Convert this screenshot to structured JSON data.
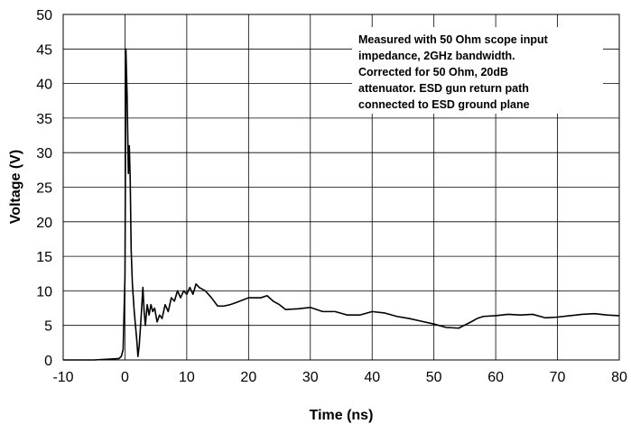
{
  "chart_data": {
    "type": "line",
    "title": "",
    "xlabel": "Time (ns)",
    "ylabel": "Voltage (V)",
    "xlim": [
      -10,
      80
    ],
    "ylim": [
      0,
      50
    ],
    "xticks": [
      -10,
      0,
      10,
      20,
      30,
      40,
      50,
      60,
      70,
      80
    ],
    "yticks": [
      0,
      5,
      10,
      15,
      20,
      25,
      30,
      35,
      40,
      45,
      50
    ],
    "grid": true,
    "annotation": [
      "Measured with 50 Ohm scope input",
      "impedance, 2GHz bandwidth.",
      "Corrected for 50 Ohm, 20dB",
      "attenuator. ESD gun return path",
      "connected to ESD ground plane"
    ],
    "series": [
      {
        "color": "#000000",
        "x": [
          -10,
          -5,
          -1,
          -0.6,
          -0.3,
          0,
          0.15,
          0.35,
          0.55,
          0.7,
          0.85,
          1.0,
          1.2,
          1.5,
          1.9,
          2.1,
          2.3,
          2.6,
          2.9,
          3.1,
          3.3,
          3.6,
          3.9,
          4.2,
          4.5,
          4.8,
          5.2,
          5.6,
          6.0,
          6.5,
          7.0,
          7.5,
          8.0,
          8.5,
          9.0,
          9.5,
          10,
          10.5,
          11,
          11.5,
          12,
          13,
          14,
          15,
          16,
          17,
          18,
          20,
          22,
          23,
          24,
          25,
          26,
          28,
          30,
          32,
          34,
          36,
          38,
          40,
          42,
          44,
          46,
          48,
          50,
          52,
          54,
          56,
          57,
          58,
          60,
          62,
          64,
          66,
          68,
          70,
          72,
          74,
          76,
          78,
          80
        ],
        "y": [
          0,
          0,
          0.2,
          0.5,
          1.5,
          12,
          45,
          38,
          27,
          31,
          26,
          16,
          11,
          7,
          3,
          0.5,
          2,
          6,
          10.5,
          7,
          5,
          8,
          6.5,
          8,
          7,
          7.5,
          5.5,
          6.5,
          6,
          8,
          7,
          9,
          8.5,
          10,
          9,
          10,
          9.5,
          10.5,
          9.5,
          11,
          10.5,
          10,
          9,
          7.8,
          7.8,
          8,
          8.3,
          9,
          9,
          9.3,
          8.5,
          8,
          7.3,
          7.4,
          7.6,
          7.0,
          7.0,
          6.5,
          6.5,
          7.0,
          6.8,
          6.3,
          6.0,
          5.6,
          5.2,
          4.7,
          4.6,
          5.5,
          6.0,
          6.3,
          6.4,
          6.6,
          6.5,
          6.6,
          6.1,
          6.2,
          6.4,
          6.6,
          6.7,
          6.5,
          6.4
        ]
      }
    ]
  }
}
